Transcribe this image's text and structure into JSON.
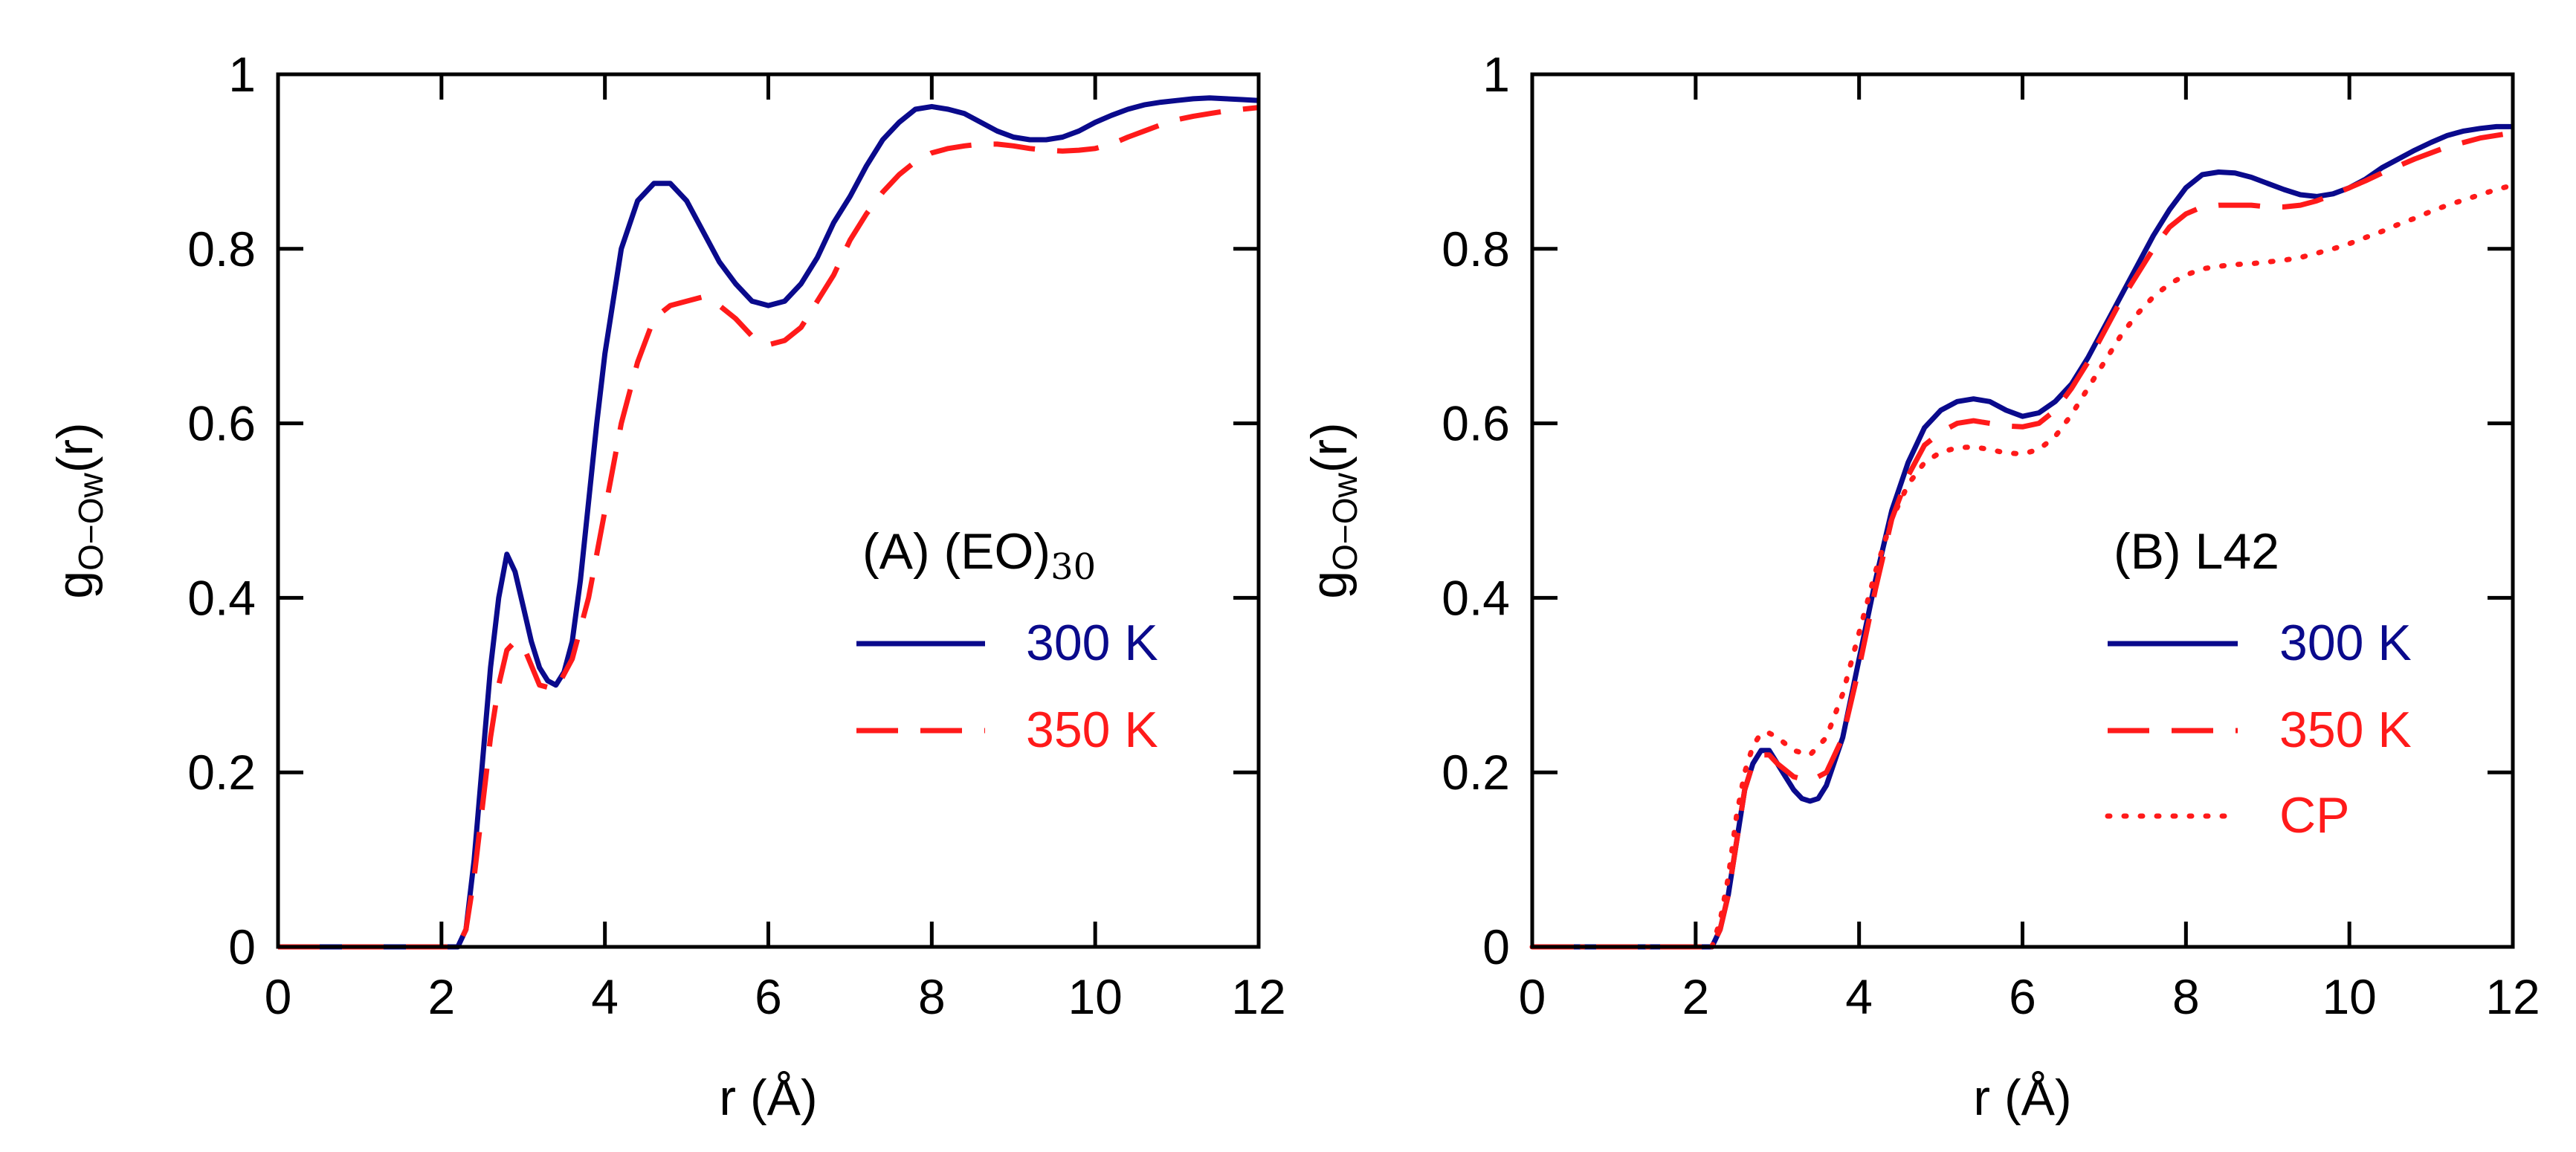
{
  "colors": {
    "blue": "#0a0a8c",
    "red": "#ff1a1a",
    "axis": "#000000"
  },
  "chart_data": [
    {
      "type": "line",
      "panel_label": "(A) (EO)",
      "panel_label_sub": "30",
      "xlabel": "r (Å)",
      "ylabel": "g",
      "ylabel_sub": "O−Ow",
      "ylabel_suffix": "(r)",
      "xlim": [
        0,
        12
      ],
      "ylim": [
        0,
        1
      ],
      "xticks": [
        "0",
        "2",
        "4",
        "6",
        "8",
        "10",
        "12"
      ],
      "yticks": [
        "0",
        "0.2",
        "0.4",
        "0.6",
        "0.8",
        "1"
      ],
      "legend_position": "right",
      "series": [
        {
          "name": "300 K",
          "style": "solid",
          "color": "#0a0a8c",
          "x": [
            0,
            2.0,
            2.2,
            2.3,
            2.4,
            2.5,
            2.6,
            2.7,
            2.8,
            2.9,
            3.0,
            3.1,
            3.2,
            3.3,
            3.4,
            3.5,
            3.6,
            3.7,
            3.8,
            3.9,
            4.0,
            4.2,
            4.4,
            4.6,
            4.8,
            5.0,
            5.2,
            5.4,
            5.6,
            5.8,
            6.0,
            6.2,
            6.4,
            6.6,
            6.8,
            7.0,
            7.2,
            7.4,
            7.6,
            7.8,
            8.0,
            8.2,
            8.4,
            8.6,
            8.8,
            9.0,
            9.2,
            9.4,
            9.6,
            9.8,
            10.0,
            10.2,
            10.4,
            10.6,
            10.8,
            11.0,
            11.2,
            11.4,
            11.6,
            11.8,
            12.0
          ],
          "y": [
            0,
            0,
            0,
            0.02,
            0.1,
            0.21,
            0.32,
            0.4,
            0.45,
            0.43,
            0.39,
            0.35,
            0.32,
            0.305,
            0.3,
            0.315,
            0.35,
            0.42,
            0.51,
            0.6,
            0.68,
            0.8,
            0.855,
            0.875,
            0.875,
            0.855,
            0.82,
            0.785,
            0.76,
            0.74,
            0.735,
            0.74,
            0.76,
            0.79,
            0.83,
            0.86,
            0.895,
            0.925,
            0.945,
            0.96,
            0.963,
            0.96,
            0.955,
            0.945,
            0.935,
            0.928,
            0.925,
            0.925,
            0.928,
            0.935,
            0.945,
            0.953,
            0.96,
            0.965,
            0.968,
            0.97,
            0.972,
            0.973,
            0.972,
            0.971,
            0.97
          ]
        },
        {
          "name": "350 K",
          "style": "dashed",
          "color": "#ff1a1a",
          "x": [
            0,
            2.0,
            2.2,
            2.3,
            2.4,
            2.5,
            2.6,
            2.7,
            2.8,
            2.9,
            3.0,
            3.2,
            3.4,
            3.6,
            3.8,
            4.0,
            4.2,
            4.4,
            4.6,
            4.8,
            5.0,
            5.2,
            5.4,
            5.6,
            5.8,
            6.0,
            6.2,
            6.4,
            6.6,
            6.8,
            7.0,
            7.2,
            7.4,
            7.6,
            7.8,
            8.0,
            8.2,
            8.4,
            8.6,
            8.8,
            9.0,
            9.2,
            9.4,
            9.6,
            9.8,
            10.0,
            10.2,
            10.4,
            10.6,
            10.8,
            11.0,
            11.2,
            11.4,
            11.6,
            11.8,
            12.0
          ],
          "y": [
            0,
            0,
            0,
            0.02,
            0.08,
            0.16,
            0.24,
            0.3,
            0.34,
            0.35,
            0.345,
            0.3,
            0.295,
            0.33,
            0.4,
            0.5,
            0.6,
            0.67,
            0.72,
            0.735,
            0.74,
            0.745,
            0.735,
            0.72,
            0.7,
            0.69,
            0.695,
            0.71,
            0.74,
            0.77,
            0.81,
            0.84,
            0.865,
            0.885,
            0.9,
            0.91,
            0.915,
            0.918,
            0.92,
            0.92,
            0.918,
            0.915,
            0.913,
            0.912,
            0.913,
            0.915,
            0.92,
            0.928,
            0.935,
            0.942,
            0.948,
            0.952,
            0.955,
            0.958,
            0.96,
            0.962
          ]
        }
      ]
    },
    {
      "type": "line",
      "panel_label": "(B) L42",
      "xlabel": "r (Å)",
      "ylabel": "g",
      "ylabel_sub": "O−Ow",
      "ylabel_suffix": "(r)",
      "xlim": [
        0,
        12
      ],
      "ylim": [
        0,
        1
      ],
      "xticks": [
        "0",
        "2",
        "4",
        "6",
        "8",
        "10",
        "12"
      ],
      "yticks": [
        "0",
        "0.2",
        "0.4",
        "0.6",
        "0.8",
        "1"
      ],
      "legend_position": "right",
      "series": [
        {
          "name": "300 K",
          "style": "solid",
          "color": "#0a0a8c",
          "x": [
            0,
            2.0,
            2.2,
            2.3,
            2.4,
            2.5,
            2.6,
            2.7,
            2.8,
            2.9,
            3.0,
            3.1,
            3.2,
            3.3,
            3.4,
            3.5,
            3.6,
            3.8,
            4.0,
            4.2,
            4.4,
            4.6,
            4.8,
            5.0,
            5.2,
            5.4,
            5.6,
            5.8,
            6.0,
            6.2,
            6.4,
            6.6,
            6.8,
            7.0,
            7.2,
            7.4,
            7.6,
            7.8,
            8.0,
            8.2,
            8.4,
            8.6,
            8.8,
            9.0,
            9.2,
            9.4,
            9.6,
            9.8,
            10.0,
            10.2,
            10.4,
            10.6,
            10.8,
            11.0,
            11.2,
            11.4,
            11.6,
            11.8,
            12.0
          ],
          "y": [
            0,
            0,
            0,
            0.02,
            0.06,
            0.12,
            0.18,
            0.21,
            0.225,
            0.225,
            0.21,
            0.195,
            0.18,
            0.17,
            0.167,
            0.17,
            0.185,
            0.24,
            0.33,
            0.42,
            0.5,
            0.555,
            0.595,
            0.615,
            0.625,
            0.628,
            0.625,
            0.615,
            0.608,
            0.612,
            0.625,
            0.645,
            0.675,
            0.71,
            0.745,
            0.78,
            0.815,
            0.845,
            0.87,
            0.885,
            0.888,
            0.887,
            0.882,
            0.875,
            0.868,
            0.862,
            0.86,
            0.863,
            0.87,
            0.88,
            0.893,
            0.903,
            0.913,
            0.922,
            0.93,
            0.935,
            0.938,
            0.94,
            0.94
          ]
        },
        {
          "name": "350 K",
          "style": "dashed",
          "color": "#ff1a1a",
          "x": [
            0,
            2.0,
            2.2,
            2.3,
            2.4,
            2.5,
            2.6,
            2.7,
            2.8,
            2.9,
            3.0,
            3.2,
            3.4,
            3.6,
            3.8,
            4.0,
            4.2,
            4.4,
            4.6,
            4.8,
            5.0,
            5.2,
            5.4,
            5.6,
            5.8,
            6.0,
            6.2,
            6.4,
            6.6,
            6.8,
            7.0,
            7.2,
            7.4,
            7.6,
            7.8,
            8.0,
            8.2,
            8.4,
            8.6,
            8.8,
            9.0,
            9.2,
            9.4,
            9.6,
            9.8,
            10.0,
            10.2,
            10.4,
            10.6,
            10.8,
            11.0,
            11.2,
            11.4,
            11.6,
            11.8,
            12.0
          ],
          "y": [
            0,
            0,
            0,
            0.02,
            0.06,
            0.12,
            0.18,
            0.21,
            0.22,
            0.22,
            0.21,
            0.195,
            0.19,
            0.2,
            0.24,
            0.32,
            0.41,
            0.49,
            0.54,
            0.575,
            0.59,
            0.6,
            0.603,
            0.6,
            0.597,
            0.596,
            0.6,
            0.615,
            0.64,
            0.67,
            0.705,
            0.74,
            0.77,
            0.8,
            0.825,
            0.84,
            0.848,
            0.85,
            0.85,
            0.85,
            0.848,
            0.848,
            0.85,
            0.855,
            0.862,
            0.87,
            0.878,
            0.887,
            0.895,
            0.903,
            0.91,
            0.917,
            0.922,
            0.927,
            0.93,
            0.933
          ]
        },
        {
          "name": "CP",
          "style": "dotted",
          "color": "#ff1a1a",
          "x": [
            0,
            2.0,
            2.2,
            2.3,
            2.4,
            2.5,
            2.6,
            2.7,
            2.8,
            2.9,
            3.0,
            3.2,
            3.4,
            3.6,
            3.8,
            4.0,
            4.2,
            4.4,
            4.6,
            4.8,
            5.0,
            5.2,
            5.4,
            5.6,
            5.8,
            6.0,
            6.2,
            6.4,
            6.6,
            6.8,
            7.0,
            7.2,
            7.4,
            7.6,
            7.8,
            8.0,
            8.2,
            8.4,
            8.6,
            8.8,
            9.0,
            9.2,
            9.4,
            9.6,
            9.8,
            10.0,
            10.2,
            10.4,
            10.6,
            10.8,
            11.0,
            11.2,
            11.4,
            11.6,
            11.8,
            12.0
          ],
          "y": [
            0,
            0,
            0,
            0.03,
            0.08,
            0.15,
            0.2,
            0.23,
            0.245,
            0.245,
            0.24,
            0.225,
            0.22,
            0.24,
            0.29,
            0.36,
            0.43,
            0.49,
            0.53,
            0.555,
            0.567,
            0.572,
            0.573,
            0.57,
            0.566,
            0.565,
            0.57,
            0.585,
            0.61,
            0.64,
            0.67,
            0.7,
            0.725,
            0.745,
            0.76,
            0.77,
            0.777,
            0.78,
            0.782,
            0.783,
            0.785,
            0.787,
            0.79,
            0.795,
            0.8,
            0.806,
            0.813,
            0.82,
            0.828,
            0.835,
            0.843,
            0.85,
            0.856,
            0.862,
            0.868,
            0.873
          ]
        }
      ]
    }
  ]
}
